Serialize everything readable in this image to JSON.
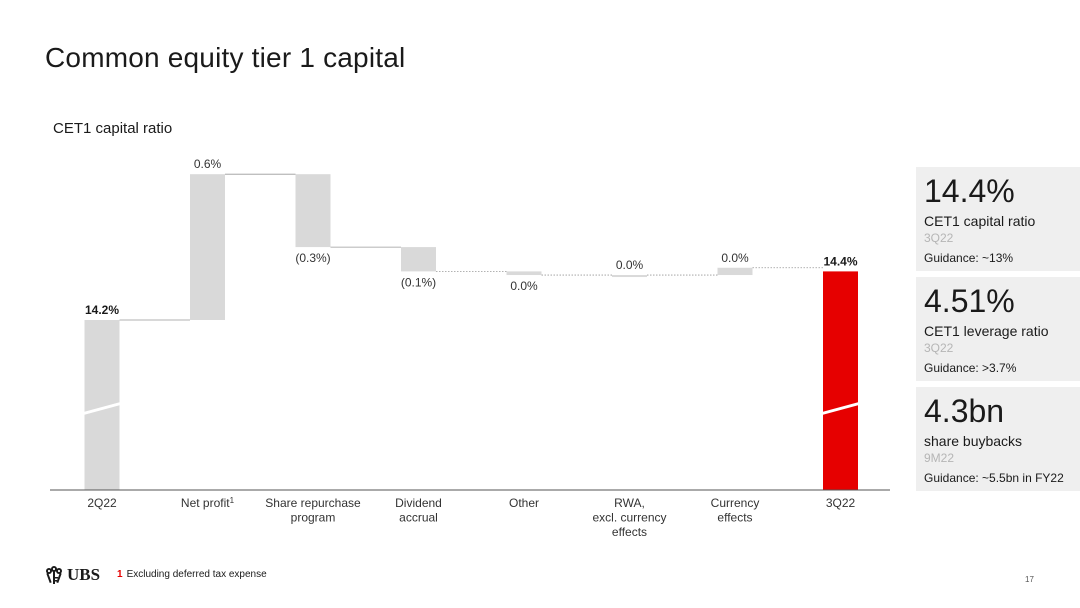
{
  "slide": {
    "title": "Common equity tier 1 capital",
    "page_number": "17",
    "footnote_number": "1",
    "footnote_text": "Excluding deferred tax expense",
    "logo_text": "UBS"
  },
  "chart_data": {
    "type": "waterfall",
    "title": "CET1 capital ratio",
    "unit": "%",
    "steps": [
      {
        "category": "2Q22",
        "category_lines": [
          "2Q22"
        ],
        "kind": "total",
        "value": 14.2,
        "label": "14.2%",
        "label_bold": true,
        "axis_break": true
      },
      {
        "category": "Net profit",
        "category_lines": [
          "Net profit"
        ],
        "superscript": "1",
        "kind": "delta",
        "value": 0.6,
        "label": "0.6%"
      },
      {
        "category": "Share repurchase program",
        "category_lines": [
          "Share repurchase",
          "program"
        ],
        "kind": "delta",
        "value": -0.3,
        "label": "(0.3%)"
      },
      {
        "category": "Dividend accrual",
        "category_lines": [
          "Dividend",
          "accrual"
        ],
        "kind": "delta",
        "value": -0.1,
        "label": "(0.1%)"
      },
      {
        "category": "Other",
        "category_lines": [
          "Other"
        ],
        "kind": "delta",
        "value": -0.015,
        "label": "0.0%"
      },
      {
        "category": "RWA, excl. currency effects",
        "category_lines": [
          "RWA,",
          "excl. currency",
          "effects"
        ],
        "kind": "delta",
        "value": 0.0,
        "label": "0.0%"
      },
      {
        "category": "Currency effects",
        "category_lines": [
          "Currency",
          "effects"
        ],
        "kind": "delta",
        "value": 0.03,
        "label": "0.0%"
      },
      {
        "category": "3Q22",
        "category_lines": [
          "3Q22"
        ],
        "kind": "total",
        "value": 14.4,
        "label": "14.4%",
        "label_bold": true,
        "highlight": true,
        "axis_break": true
      }
    ],
    "colors": {
      "bar": "#d9d9d9",
      "highlight": "#e60000",
      "connector": "#999999",
      "axis": "#555555"
    }
  },
  "kpis": [
    {
      "value": "14.4%",
      "label": "CET1 capital ratio",
      "period": "3Q22",
      "guidance": "Guidance: ~13%"
    },
    {
      "value": "4.51%",
      "label": "CET1 leverage ratio",
      "period": "3Q22",
      "guidance": "Guidance: >3.7%"
    },
    {
      "value": "4.3bn",
      "label": "share buybacks",
      "period": "9M22",
      "guidance": "Guidance: ~5.5bn in FY22"
    }
  ]
}
